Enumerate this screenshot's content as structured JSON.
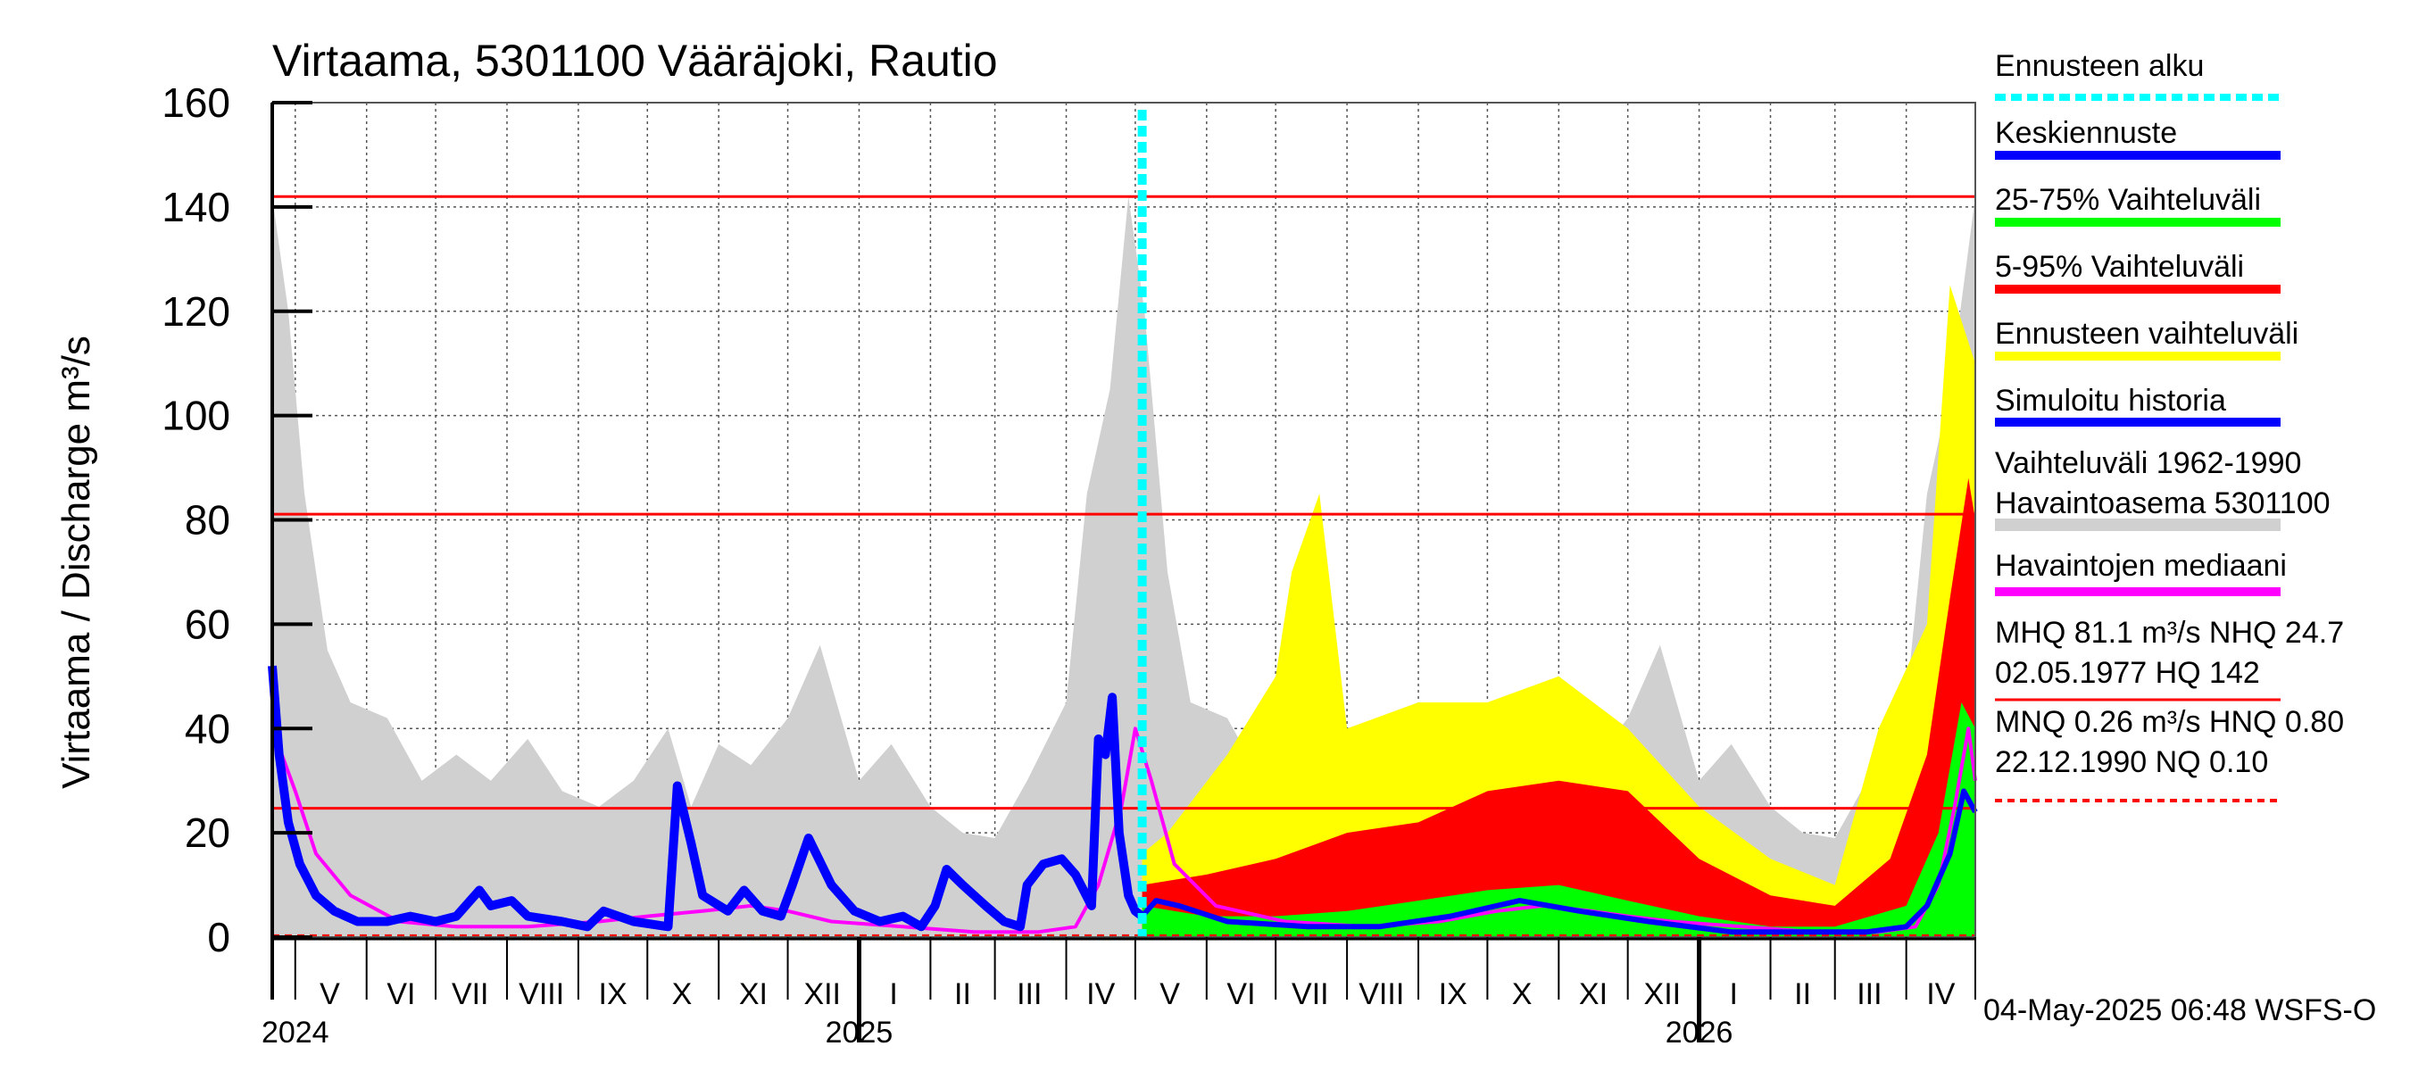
{
  "chart_data": {
    "type": "area",
    "title": "Virtaama, 5301100 Vääräjoki, Rautio",
    "ylabel": "Virtaama / Discharge   m³/s",
    "ylim": [
      0,
      160
    ],
    "yticks": [
      0,
      20,
      40,
      60,
      80,
      100,
      120,
      140,
      160
    ],
    "x_start": "2024-04-21",
    "x_end": "2026-05-01",
    "forecast_start": "2025-05-04",
    "month_labels": [
      {
        "label": "V",
        "date": "2024-05-16"
      },
      {
        "label": "VI",
        "date": "2024-06-16"
      },
      {
        "label": "VII",
        "date": "2024-07-16"
      },
      {
        "label": "VIII",
        "date": "2024-08-16"
      },
      {
        "label": "IX",
        "date": "2024-09-16"
      },
      {
        "label": "X",
        "date": "2024-10-16"
      },
      {
        "label": "XI",
        "date": "2024-11-16"
      },
      {
        "label": "XII",
        "date": "2024-12-16"
      },
      {
        "label": "I",
        "date": "2025-01-16"
      },
      {
        "label": "II",
        "date": "2025-02-15"
      },
      {
        "label": "III",
        "date": "2025-03-16"
      },
      {
        "label": "IV",
        "date": "2025-04-16"
      },
      {
        "label": "V",
        "date": "2025-05-16"
      },
      {
        "label": "VI",
        "date": "2025-06-16"
      },
      {
        "label": "VII",
        "date": "2025-07-16"
      },
      {
        "label": "VIII",
        "date": "2025-08-16"
      },
      {
        "label": "IX",
        "date": "2025-09-16"
      },
      {
        "label": "X",
        "date": "2025-10-16"
      },
      {
        "label": "XI",
        "date": "2025-11-16"
      },
      {
        "label": "XII",
        "date": "2025-12-16"
      },
      {
        "label": "I",
        "date": "2026-01-16"
      },
      {
        "label": "II",
        "date": "2026-02-15"
      },
      {
        "label": "III",
        "date": "2026-03-16"
      },
      {
        "label": "IV",
        "date": "2026-04-16"
      }
    ],
    "year_labels": [
      {
        "label": "2024",
        "date": "2024-05-01"
      },
      {
        "label": "2025",
        "date": "2025-01-01"
      },
      {
        "label": "2026",
        "date": "2026-01-01"
      }
    ],
    "reference_lines": [
      {
        "name": "HQ",
        "value": 142,
        "color": "#ff0000"
      },
      {
        "name": "MHQ",
        "value": 81.1,
        "color": "#ff0000"
      },
      {
        "name": "NHQ",
        "value": 24.7,
        "color": "#ff0000"
      },
      {
        "name": "NQ",
        "value": 0.1,
        "color": "#ff0000",
        "dashed": true
      }
    ],
    "legend": [
      {
        "label": "Ennusteen alku",
        "color": "#00ffff",
        "dashed": true
      },
      {
        "label": "Keskiennuste",
        "color": "#0000ff"
      },
      {
        "label": "25-75% Vaihteluväli",
        "color": "#00ff00"
      },
      {
        "label": "5-95% Vaihteluväli",
        "color": "#ff0000"
      },
      {
        "label": "Ennusteen vaihteluväli",
        "color": "#ffff00"
      },
      {
        "label": "Simuloitu historia",
        "color": "#0000ff"
      },
      {
        "label": "Vaihteluväli 1962-1990\n Havaintoasema 5301100",
        "color": "#d0d0d0"
      },
      {
        "label": "Havaintojen mediaani",
        "color": "#ff00ff"
      },
      {
        "label": "MHQ 81.1 m³/s NHQ 24.7\n02.05.1977 HQ  142",
        "color": "#ff0000"
      },
      {
        "label": "MNQ 0.26 m³/s HNQ 0.80\n22.12.1990 NQ 0.10",
        "color": "#ff0000",
        "dashed": true
      }
    ],
    "series": [
      {
        "name": "Simuloitu historia",
        "color": "#0000ff",
        "points": [
          [
            "2024-04-21",
            52
          ],
          [
            "2024-04-24",
            35
          ],
          [
            "2024-04-28",
            22
          ],
          [
            "2024-05-03",
            14
          ],
          [
            "2024-05-10",
            8
          ],
          [
            "2024-05-18",
            5
          ],
          [
            "2024-05-28",
            3
          ],
          [
            "2024-06-10",
            3
          ],
          [
            "2024-06-20",
            4
          ],
          [
            "2024-07-01",
            3
          ],
          [
            "2024-07-10",
            4
          ],
          [
            "2024-07-20",
            9
          ],
          [
            "2024-07-25",
            6
          ],
          [
            "2024-08-03",
            7
          ],
          [
            "2024-08-10",
            4
          ],
          [
            "2024-08-25",
            3
          ],
          [
            "2024-09-05",
            2
          ],
          [
            "2024-09-12",
            5
          ],
          [
            "2024-09-25",
            3
          ],
          [
            "2024-10-10",
            2
          ],
          [
            "2024-10-14",
            29
          ],
          [
            "2024-10-20",
            18
          ],
          [
            "2024-10-25",
            8
          ],
          [
            "2024-11-05",
            5
          ],
          [
            "2024-11-12",
            9
          ],
          [
            "2024-11-20",
            5
          ],
          [
            "2024-11-28",
            4
          ],
          [
            "2024-12-03",
            10
          ],
          [
            "2024-12-10",
            19
          ],
          [
            "2024-12-20",
            10
          ],
          [
            "2024-12-30",
            5
          ],
          [
            "2025-01-10",
            3
          ],
          [
            "2025-01-20",
            4
          ],
          [
            "2025-01-28",
            2
          ],
          [
            "2025-02-03",
            6
          ],
          [
            "2025-02-08",
            13
          ],
          [
            "2025-02-15",
            10
          ],
          [
            "2025-02-25",
            6
          ],
          [
            "2025-03-05",
            3
          ],
          [
            "2025-03-12",
            2
          ],
          [
            "2025-03-15",
            10
          ],
          [
            "2025-03-22",
            14
          ],
          [
            "2025-03-30",
            15
          ],
          [
            "2025-04-05",
            12
          ],
          [
            "2025-04-12",
            6
          ],
          [
            "2025-04-15",
            38
          ],
          [
            "2025-04-18",
            35
          ],
          [
            "2025-04-21",
            46
          ],
          [
            "2025-04-24",
            20
          ],
          [
            "2025-04-28",
            8
          ],
          [
            "2025-05-01",
            5
          ],
          [
            "2025-05-04",
            4
          ]
        ]
      },
      {
        "name": "Havaintojen mediaani",
        "color": "#ff00ff",
        "points": [
          [
            "2024-04-21",
            40
          ],
          [
            "2024-05-01",
            28
          ],
          [
            "2024-05-10",
            16
          ],
          [
            "2024-05-25",
            8
          ],
          [
            "2024-06-15",
            3
          ],
          [
            "2024-07-10",
            2
          ],
          [
            "2024-08-10",
            2
          ],
          [
            "2024-09-10",
            3
          ],
          [
            "2024-10-01",
            4
          ],
          [
            "2024-10-25",
            5
          ],
          [
            "2024-11-15",
            6
          ],
          [
            "2024-12-01",
            5
          ],
          [
            "2024-12-20",
            3
          ],
          [
            "2025-01-20",
            2
          ],
          [
            "2025-02-20",
            1
          ],
          [
            "2025-03-20",
            1
          ],
          [
            "2025-04-05",
            2
          ],
          [
            "2025-04-15",
            10
          ],
          [
            "2025-04-25",
            25
          ],
          [
            "2025-05-01",
            40
          ],
          [
            "2025-05-08",
            30
          ],
          [
            "2025-05-18",
            14
          ],
          [
            "2025-06-05",
            6
          ],
          [
            "2025-07-05",
            3
          ],
          [
            "2025-08-10",
            2
          ],
          [
            "2025-09-10",
            3
          ],
          [
            "2025-10-05",
            5
          ],
          [
            "2025-10-25",
            6
          ],
          [
            "2025-11-15",
            5
          ],
          [
            "2025-12-01",
            4
          ],
          [
            "2025-12-20",
            3
          ],
          [
            "2026-01-20",
            2
          ],
          [
            "2026-02-20",
            1
          ],
          [
            "2026-03-20",
            1
          ],
          [
            "2026-04-05",
            2
          ],
          [
            "2026-04-15",
            10
          ],
          [
            "2026-04-22",
            25
          ],
          [
            "2026-04-28",
            40
          ],
          [
            "2026-05-01",
            30
          ]
        ]
      },
      {
        "name": "Keskiennuste",
        "color": "#0000ff",
        "points": [
          [
            "2025-05-04",
            4
          ],
          [
            "2025-05-10",
            7
          ],
          [
            "2025-05-20",
            6
          ],
          [
            "2025-06-10",
            3
          ],
          [
            "2025-07-15",
            2
          ],
          [
            "2025-08-15",
            2
          ],
          [
            "2025-09-15",
            4
          ],
          [
            "2025-10-15",
            7
          ],
          [
            "2025-11-10",
            5
          ],
          [
            "2025-12-10",
            3
          ],
          [
            "2026-01-15",
            1
          ],
          [
            "2026-02-15",
            1
          ],
          [
            "2026-03-15",
            1
          ],
          [
            "2026-04-01",
            2
          ],
          [
            "2026-04-10",
            6
          ],
          [
            "2026-04-20",
            16
          ],
          [
            "2026-04-26",
            28
          ],
          [
            "2026-05-01",
            24
          ]
        ]
      },
      {
        "name": "Ennusteen vaihteluväli",
        "color": "#ffff00",
        "low": "2025-05-04:1, 2026-05-01:0",
        "upper": [
          [
            "2025-05-04",
            16
          ],
          [
            "2025-05-15",
            20
          ],
          [
            "2025-06-10",
            35
          ],
          [
            "2025-07-01",
            50
          ],
          [
            "2025-07-08",
            70
          ],
          [
            "2025-07-20",
            85
          ],
          [
            "2025-08-01",
            40
          ],
          [
            "2025-09-01",
            45
          ],
          [
            "2025-10-01",
            45
          ],
          [
            "2025-11-01",
            50
          ],
          [
            "2025-12-01",
            40
          ],
          [
            "2026-01-01",
            25
          ],
          [
            "2026-02-01",
            15
          ],
          [
            "2026-03-01",
            10
          ],
          [
            "2026-03-20",
            40
          ],
          [
            "2026-04-10",
            60
          ],
          [
            "2026-04-20",
            125
          ],
          [
            "2026-05-01",
            110
          ]
        ]
      },
      {
        "name": "5-95% Vaihteluväli",
        "color": "#ff0000",
        "upper": [
          [
            "2025-05-04",
            10
          ],
          [
            "2025-06-01",
            12
          ],
          [
            "2025-07-01",
            15
          ],
          [
            "2025-08-01",
            20
          ],
          [
            "2025-09-01",
            22
          ],
          [
            "2025-10-01",
            28
          ],
          [
            "2025-11-01",
            30
          ],
          [
            "2025-12-01",
            28
          ],
          [
            "2026-01-01",
            15
          ],
          [
            "2026-02-01",
            8
          ],
          [
            "2026-03-01",
            6
          ],
          [
            "2026-03-25",
            15
          ],
          [
            "2026-04-10",
            35
          ],
          [
            "2026-04-20",
            65
          ],
          [
            "2026-04-28",
            88
          ],
          [
            "2026-05-01",
            80
          ]
        ]
      },
      {
        "name": "25-75% Vaihteluväli",
        "color": "#00ff00",
        "upper": [
          [
            "2025-05-04",
            6
          ],
          [
            "2025-06-01",
            4
          ],
          [
            "2025-07-01",
            4
          ],
          [
            "2025-08-01",
            5
          ],
          [
            "2025-09-01",
            7
          ],
          [
            "2025-10-01",
            9
          ],
          [
            "2025-11-01",
            10
          ],
          [
            "2025-12-01",
            7
          ],
          [
            "2026-01-01",
            4
          ],
          [
            "2026-02-01",
            2
          ],
          [
            "2026-03-01",
            2
          ],
          [
            "2026-04-01",
            6
          ],
          [
            "2026-04-15",
            20
          ],
          [
            "2026-04-25",
            45
          ],
          [
            "2026-05-01",
            40
          ]
        ]
      },
      {
        "name": "Vaihteluväli 1962-1990 Havaintoasema 5301100",
        "color": "#d0d0d0",
        "upper": [
          [
            "2024-04-21",
            142
          ],
          [
            "2024-04-28",
            120
          ],
          [
            "2024-05-05",
            85
          ],
          [
            "2024-05-15",
            55
          ],
          [
            "2024-05-25",
            45
          ],
          [
            "2024-06-10",
            42
          ],
          [
            "2024-06-25",
            30
          ],
          [
            "2024-07-10",
            35
          ],
          [
            "2024-07-25",
            30
          ],
          [
            "2024-08-10",
            38
          ],
          [
            "2024-08-25",
            28
          ],
          [
            "2024-09-10",
            25
          ],
          [
            "2024-09-25",
            30
          ],
          [
            "2024-10-10",
            40
          ],
          [
            "2024-10-20",
            25
          ],
          [
            "2024-11-01",
            37
          ],
          [
            "2024-11-15",
            33
          ],
          [
            "2024-12-01",
            42
          ],
          [
            "2024-12-15",
            56
          ],
          [
            "2025-01-01",
            30
          ],
          [
            "2025-01-15",
            37
          ],
          [
            "2025-02-01",
            25
          ],
          [
            "2025-02-15",
            20
          ],
          [
            "2025-03-01",
            19
          ],
          [
            "2025-03-15",
            30
          ],
          [
            "2025-04-01",
            45
          ],
          [
            "2025-04-10",
            85
          ],
          [
            "2025-04-20",
            105
          ],
          [
            "2025-04-28",
            142
          ],
          [
            "2025-05-05",
            120
          ],
          [
            "2025-05-15",
            70
          ],
          [
            "2025-05-25",
            45
          ],
          [
            "2025-06-10",
            42
          ],
          [
            "2025-06-25",
            30
          ],
          [
            "2025-07-10",
            35
          ],
          [
            "2025-07-25",
            30
          ],
          [
            "2025-08-10",
            38
          ],
          [
            "2025-08-25",
            28
          ],
          [
            "2025-09-10",
            25
          ],
          [
            "2025-09-25",
            30
          ],
          [
            "2025-10-10",
            40
          ],
          [
            "2025-10-20",
            25
          ],
          [
            "2025-11-01",
            37
          ],
          [
            "2025-11-15",
            33
          ],
          [
            "2025-12-01",
            42
          ],
          [
            "2025-12-15",
            56
          ],
          [
            "2026-01-01",
            30
          ],
          [
            "2026-01-15",
            37
          ],
          [
            "2026-02-01",
            25
          ],
          [
            "2026-02-15",
            20
          ],
          [
            "2026-03-01",
            19
          ],
          [
            "2026-03-15",
            30
          ],
          [
            "2026-04-01",
            45
          ],
          [
            "2026-04-10",
            85
          ],
          [
            "2026-04-20",
            105
          ],
          [
            "2026-05-01",
            142
          ]
        ]
      }
    ],
    "footer": "04-May-2025 06:48 WSFS-O"
  }
}
